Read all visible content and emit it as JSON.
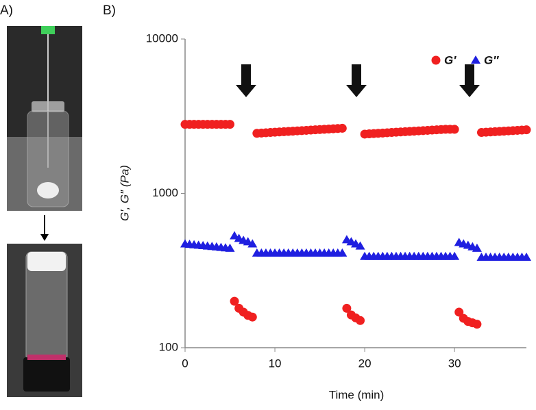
{
  "panel_a": {
    "label": "A)"
  },
  "chart_data": {
    "type": "scatter",
    "panel_label": "B)",
    "xlabel": "Time (min)",
    "ylabel": "G′, G″ (Pa)",
    "x": [
      0,
      0.5,
      1,
      1.5,
      2,
      2.5,
      3,
      3.5,
      4,
      4.5,
      5,
      5.5,
      6,
      6.5,
      7,
      7.5,
      8,
      8.5,
      9,
      9.5,
      10,
      10.5,
      11,
      11.5,
      12,
      12.5,
      13,
      13.5,
      14,
      14.5,
      15,
      15.5,
      16,
      16.5,
      17,
      17.5,
      18,
      18.5,
      19,
      19.5,
      20,
      20.5,
      21,
      21.5,
      22,
      22.5,
      23,
      23.5,
      24,
      24.5,
      25,
      25.5,
      26,
      26.5,
      27,
      27.5,
      28,
      28.5,
      29,
      29.5,
      30,
      30.5,
      31,
      31.5,
      32,
      32.5,
      33,
      33.5,
      34,
      34.5,
      35,
      35.5,
      36,
      36.5,
      37,
      37.5,
      38
    ],
    "series": [
      {
        "name": "G′",
        "color": "#f02020",
        "marker": "circle",
        "values": [
          2800,
          2800,
          2800,
          2800,
          2800,
          2800,
          2800,
          2800,
          2800,
          2800,
          2800,
          200,
          180,
          170,
          162,
          158,
          2450,
          2460,
          2470,
          2480,
          2490,
          2500,
          2510,
          2520,
          2530,
          2540,
          2550,
          2560,
          2570,
          2580,
          2590,
          2600,
          2610,
          2620,
          2630,
          2640,
          180,
          163,
          156,
          150,
          2420,
          2430,
          2440,
          2450,
          2460,
          2470,
          2480,
          2490,
          2500,
          2510,
          2520,
          2530,
          2540,
          2550,
          2560,
          2570,
          2580,
          2590,
          2600,
          2600,
          2600,
          170,
          155,
          148,
          145,
          142,
          2480,
          2490,
          2500,
          2510,
          2520,
          2530,
          2540,
          2550,
          2560,
          2570,
          2580
        ]
      },
      {
        "name": "G″",
        "color": "#1f1fe0",
        "marker": "triangle",
        "values": [
          470,
          467,
          464,
          461,
          458,
          455,
          452,
          449,
          446,
          443,
          440,
          530,
          510,
          495,
          485,
          470,
          410,
          410,
          410,
          410,
          410,
          410,
          410,
          410,
          410,
          410,
          410,
          410,
          410,
          410,
          410,
          410,
          410,
          410,
          410,
          410,
          500,
          485,
          470,
          455,
          390,
          390,
          390,
          390,
          390,
          390,
          390,
          390,
          390,
          390,
          390,
          390,
          390,
          390,
          390,
          390,
          390,
          390,
          390,
          390,
          390,
          480,
          470,
          460,
          450,
          440,
          385,
          385,
          385,
          385,
          385,
          385,
          385,
          385,
          385,
          385,
          385
        ]
      }
    ],
    "xlim": [
      0,
      38
    ],
    "xticks": [
      0,
      10,
      20,
      30
    ],
    "ylim": [
      100,
      10000
    ],
    "yticks": [
      100,
      1000,
      10000
    ],
    "yscale": "log",
    "grid": false
  }
}
